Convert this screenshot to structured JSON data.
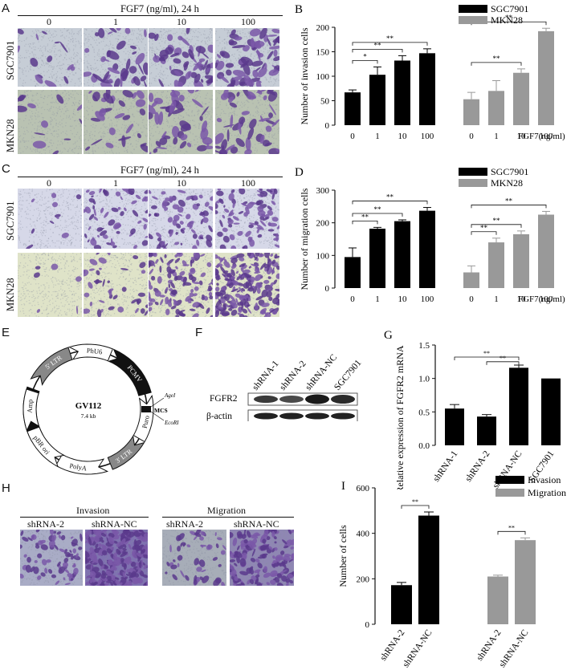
{
  "panels": {
    "A": {
      "letter": "A",
      "title": "FGF7 (ng/ml), 24 h",
      "columns": [
        "0",
        "1",
        "10",
        "100"
      ],
      "rows": [
        "SGC7901",
        "MKN28"
      ]
    },
    "C": {
      "letter": "C",
      "title": "FGF7 (ng/ml), 24 h",
      "columns": [
        "0",
        "1",
        "10",
        "100"
      ],
      "rows": [
        "SGC7901",
        "MKN28"
      ]
    },
    "E": {
      "letter": "E",
      "plasmid_name": "GV112",
      "plasmid_size": "7.4 kb",
      "features": [
        "PCMV",
        "5' LTR",
        "PhU6",
        "MCS",
        "AgeI",
        "EcoRI",
        "PCMV",
        "Puro",
        "3' LTR",
        "PolyA",
        "pBR ori",
        "Amp"
      ]
    },
    "F": {
      "letter": "F",
      "lanes": [
        "shRNA-1",
        "shRNA-2",
        "shRNA-NC",
        "SGC7901"
      ],
      "bands": [
        "FGFR2",
        "β-actin"
      ]
    },
    "H": {
      "letter": "H",
      "groups": [
        {
          "title": "Invasion",
          "lanes": [
            "shRNA-2",
            "shRNA-NC"
          ]
        },
        {
          "title": "Migration",
          "lanes": [
            "shRNA-2",
            "shRNA-NC"
          ]
        }
      ]
    }
  },
  "chart_data": [
    {
      "panel": "B",
      "type": "bar",
      "letter": "B",
      "ylabel": "Number of invasion cells",
      "xlabel": "FGF7(ng/ml)",
      "categories": [
        "0",
        "1",
        "10",
        "100"
      ],
      "ylim": [
        0,
        200
      ],
      "yticks": [
        0,
        50,
        100,
        150,
        200
      ],
      "series": [
        {
          "name": "SGC7901",
          "color": "#000000",
          "values": [
            67,
            103,
            132,
            147
          ],
          "errors": [
            5,
            16,
            10,
            9
          ]
        },
        {
          "name": "MKN28",
          "color": "#999999",
          "values": [
            53,
            70,
            107,
            192
          ],
          "errors": [
            14,
            21,
            8,
            6
          ]
        }
      ],
      "significance": [
        {
          "series": 0,
          "from": 0,
          "to": 1,
          "label": "*"
        },
        {
          "series": 0,
          "from": 0,
          "to": 2,
          "label": "**"
        },
        {
          "series": 0,
          "from": 0,
          "to": 3,
          "label": "**"
        },
        {
          "series": 1,
          "from": 0,
          "to": 2,
          "label": "**"
        },
        {
          "series": 1,
          "from": 0,
          "to": 3,
          "label": "**"
        }
      ]
    },
    {
      "panel": "D",
      "type": "bar",
      "letter": "D",
      "ylabel": "Number of migration cells",
      "xlabel": "FGF7(ng/ml)",
      "categories": [
        "0",
        "1",
        "10",
        "100"
      ],
      "ylim": [
        0,
        300
      ],
      "yticks": [
        0,
        100,
        200,
        300
      ],
      "series": [
        {
          "name": "SGC7901",
          "color": "#000000",
          "values": [
            95,
            182,
            205,
            237
          ],
          "errors": [
            28,
            4,
            4,
            10
          ]
        },
        {
          "name": "MKN28",
          "color": "#999999",
          "values": [
            48,
            140,
            165,
            225
          ],
          "errors": [
            20,
            13,
            10,
            10
          ]
        }
      ],
      "significance": [
        {
          "series": 0,
          "from": 0,
          "to": 1,
          "label": "**"
        },
        {
          "series": 0,
          "from": 0,
          "to": 2,
          "label": "**"
        },
        {
          "series": 0,
          "from": 0,
          "to": 3,
          "label": "**"
        },
        {
          "series": 1,
          "from": 0,
          "to": 1,
          "label": "**"
        },
        {
          "series": 1,
          "from": 0,
          "to": 2,
          "label": "**"
        },
        {
          "series": 1,
          "from": 0,
          "to": 3,
          "label": "**"
        }
      ]
    },
    {
      "panel": "G",
      "type": "bar",
      "letter": "G",
      "ylabel": "Relative expression of FGFR2 mRNA",
      "categories": [
        "shRNA-1",
        "shRNA-2",
        "shRNA-NC",
        "SGC7901"
      ],
      "ylim": [
        0,
        1.5
      ],
      "yticks": [
        0.0,
        0.5,
        1.0,
        1.5
      ],
      "ytick_labels": [
        "0.0",
        "0.5",
        "1.0",
        "1.5"
      ],
      "color": "#000000",
      "values": [
        0.55,
        0.43,
        1.16,
        1.0
      ],
      "errors": [
        0.06,
        0.03,
        0.04,
        0
      ],
      "significance": [
        {
          "from": 0,
          "to": 2,
          "label": "**"
        },
        {
          "from": 1,
          "to": 2,
          "label": "**"
        }
      ]
    },
    {
      "panel": "I",
      "type": "bar",
      "letter": "I",
      "ylabel": "Number of cells",
      "ylim": [
        0,
        600
      ],
      "yticks": [
        0,
        200,
        400,
        600
      ],
      "groups": [
        {
          "name": "Invasion",
          "color": "#000000",
          "categories": [
            "shRNA-2",
            "shRNA-NC"
          ],
          "values": [
            172,
            478
          ],
          "errors": [
            12,
            16
          ]
        },
        {
          "name": "Migration",
          "color": "#999999",
          "categories": [
            "shRNA-2",
            "shRNA-NC"
          ],
          "values": [
            210,
            370
          ],
          "errors": [
            6,
            10
          ]
        }
      ],
      "significance": [
        {
          "group": 0,
          "label": "**"
        },
        {
          "group": 1,
          "label": "**"
        }
      ]
    }
  ]
}
